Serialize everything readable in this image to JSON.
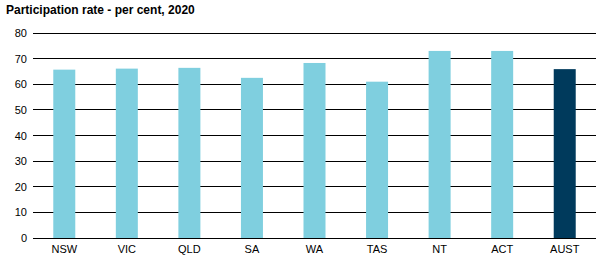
{
  "chart_data": {
    "type": "bar",
    "title": "Participation rate - per cent, 2020",
    "categories": [
      "NSW",
      "VIC",
      "QLD",
      "SA",
      "WA",
      "TAS",
      "NT",
      "ACT",
      "AUST"
    ],
    "values": [
      65.7,
      66.1,
      66.4,
      62.5,
      68.3,
      61.0,
      73.0,
      73.0,
      65.9
    ],
    "colors": [
      "#7fcfdf",
      "#7fcfdf",
      "#7fcfdf",
      "#7fcfdf",
      "#7fcfdf",
      "#7fcfdf",
      "#7fcfdf",
      "#7fcfdf",
      "#003a5c"
    ],
    "ylim": [
      0,
      80
    ],
    "yticks": [
      0,
      10,
      20,
      30,
      40,
      50,
      60,
      70,
      80
    ],
    "grid": true
  }
}
